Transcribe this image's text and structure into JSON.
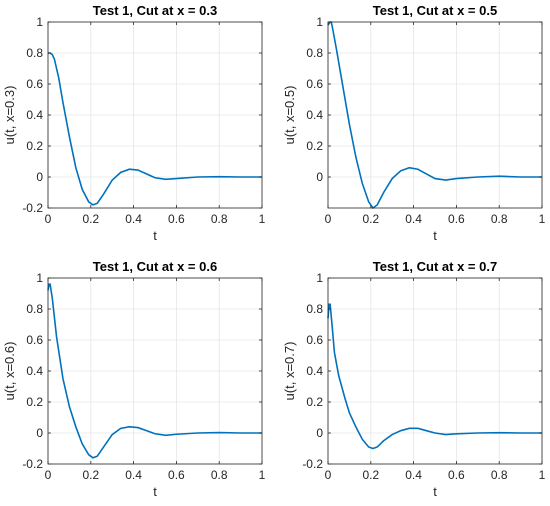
{
  "chart_data": [
    {
      "type": "line",
      "title": "Test 1, Cut at x = 0.3",
      "xlabel": "t",
      "ylabel": "u(t, x=0.3)",
      "xlim": [
        0,
        1
      ],
      "ylim": [
        -0.2,
        1
      ],
      "xticks": [
        "0",
        "0.2",
        "0.4",
        "0.6",
        "0.8",
        "1"
      ],
      "yticks": [
        "-0.2",
        "0",
        "0.2",
        "0.4",
        "0.6",
        "0.8",
        "1"
      ],
      "grid": true,
      "series": [
        {
          "color": "#0072BD",
          "x": [
            0,
            0.01,
            0.02,
            0.03,
            0.05,
            0.07,
            0.1,
            0.13,
            0.16,
            0.19,
            0.21,
            0.23,
            0.26,
            0.3,
            0.34,
            0.38,
            0.42,
            0.46,
            0.5,
            0.55,
            0.6,
            0.7,
            0.8,
            0.9,
            1.0
          ],
          "y": [
            0.8,
            0.8,
            0.79,
            0.76,
            0.64,
            0.48,
            0.26,
            0.06,
            -0.08,
            -0.16,
            -0.18,
            -0.17,
            -0.11,
            -0.02,
            0.03,
            0.05,
            0.045,
            0.02,
            -0.005,
            -0.015,
            -0.01,
            0.0,
            0.002,
            0.0,
            0.0
          ]
        }
      ]
    },
    {
      "type": "line",
      "title": "Test 1, Cut at x = 0.5",
      "xlabel": "t",
      "ylabel": "u(t, x=0.5)",
      "xlim": [
        0,
        1
      ],
      "ylim": [
        -0.2,
        1
      ],
      "xticks": [
        "0",
        "0.2",
        "0.4",
        "0.6",
        "0.8",
        "1"
      ],
      "yticks": [
        "0",
        "0.2",
        "0.4",
        "0.6",
        "0.8",
        "1"
      ],
      "grid": true,
      "series": [
        {
          "color": "#0072BD",
          "x": [
            0,
            0.01,
            0.015,
            0.02,
            0.04,
            0.07,
            0.1,
            0.13,
            0.16,
            0.19,
            0.21,
            0.23,
            0.26,
            0.3,
            0.34,
            0.38,
            0.42,
            0.46,
            0.5,
            0.55,
            0.6,
            0.7,
            0.8,
            0.9,
            1.0
          ],
          "y": [
            0.98,
            1.0,
            1.0,
            0.97,
            0.82,
            0.58,
            0.34,
            0.13,
            -0.04,
            -0.16,
            -0.2,
            -0.18,
            -0.1,
            -0.01,
            0.04,
            0.06,
            0.05,
            0.02,
            -0.01,
            -0.02,
            -0.01,
            0.0,
            0.005,
            0.0,
            0.0
          ]
        }
      ]
    },
    {
      "type": "line",
      "title": "Test 1, Cut at x = 0.6",
      "xlabel": "t",
      "ylabel": "u(t, x=0.6)",
      "xlim": [
        0,
        1
      ],
      "ylim": [
        -0.2,
        1
      ],
      "xticks": [
        "0",
        "0.2",
        "0.4",
        "0.6",
        "0.8",
        "1"
      ],
      "yticks": [
        "-0.2",
        "0",
        "0.2",
        "0.4",
        "0.6",
        "0.8",
        "1"
      ],
      "grid": true,
      "series": [
        {
          "color": "#0072BD",
          "x": [
            0,
            0.005,
            0.01,
            0.02,
            0.04,
            0.07,
            0.1,
            0.13,
            0.16,
            0.19,
            0.21,
            0.23,
            0.26,
            0.3,
            0.34,
            0.38,
            0.42,
            0.46,
            0.5,
            0.55,
            0.6,
            0.7,
            0.8,
            0.9,
            1.0
          ],
          "y": [
            0.92,
            0.96,
            0.96,
            0.87,
            0.62,
            0.35,
            0.17,
            0.04,
            -0.07,
            -0.14,
            -0.16,
            -0.15,
            -0.09,
            -0.01,
            0.03,
            0.04,
            0.035,
            0.015,
            -0.005,
            -0.015,
            -0.008,
            0.0,
            0.003,
            0.0,
            0.0
          ]
        }
      ]
    },
    {
      "type": "line",
      "title": "Test 1, Cut at x = 0.7",
      "xlabel": "t",
      "ylabel": "u(t, x=0.7)",
      "xlim": [
        0,
        1
      ],
      "ylim": [
        -0.2,
        1
      ],
      "xticks": [
        "0",
        "0.2",
        "0.4",
        "0.6",
        "0.8",
        "1"
      ],
      "yticks": [
        "-0.2",
        "0",
        "0.2",
        "0.4",
        "0.6",
        "0.8",
        "1"
      ],
      "grid": true,
      "series": [
        {
          "color": "#0072BD",
          "x": [
            0,
            0.005,
            0.01,
            0.02,
            0.03,
            0.05,
            0.08,
            0.1,
            0.13,
            0.16,
            0.19,
            0.21,
            0.23,
            0.26,
            0.3,
            0.34,
            0.38,
            0.42,
            0.46,
            0.5,
            0.55,
            0.6,
            0.7,
            0.8,
            0.9,
            1.0
          ],
          "y": [
            0.74,
            0.83,
            0.83,
            0.68,
            0.52,
            0.37,
            0.22,
            0.13,
            0.04,
            -0.04,
            -0.09,
            -0.1,
            -0.09,
            -0.05,
            -0.01,
            0.015,
            0.03,
            0.03,
            0.015,
            0.0,
            -0.01,
            -0.005,
            0.0,
            0.002,
            0.0,
            0.0
          ]
        }
      ]
    }
  ]
}
